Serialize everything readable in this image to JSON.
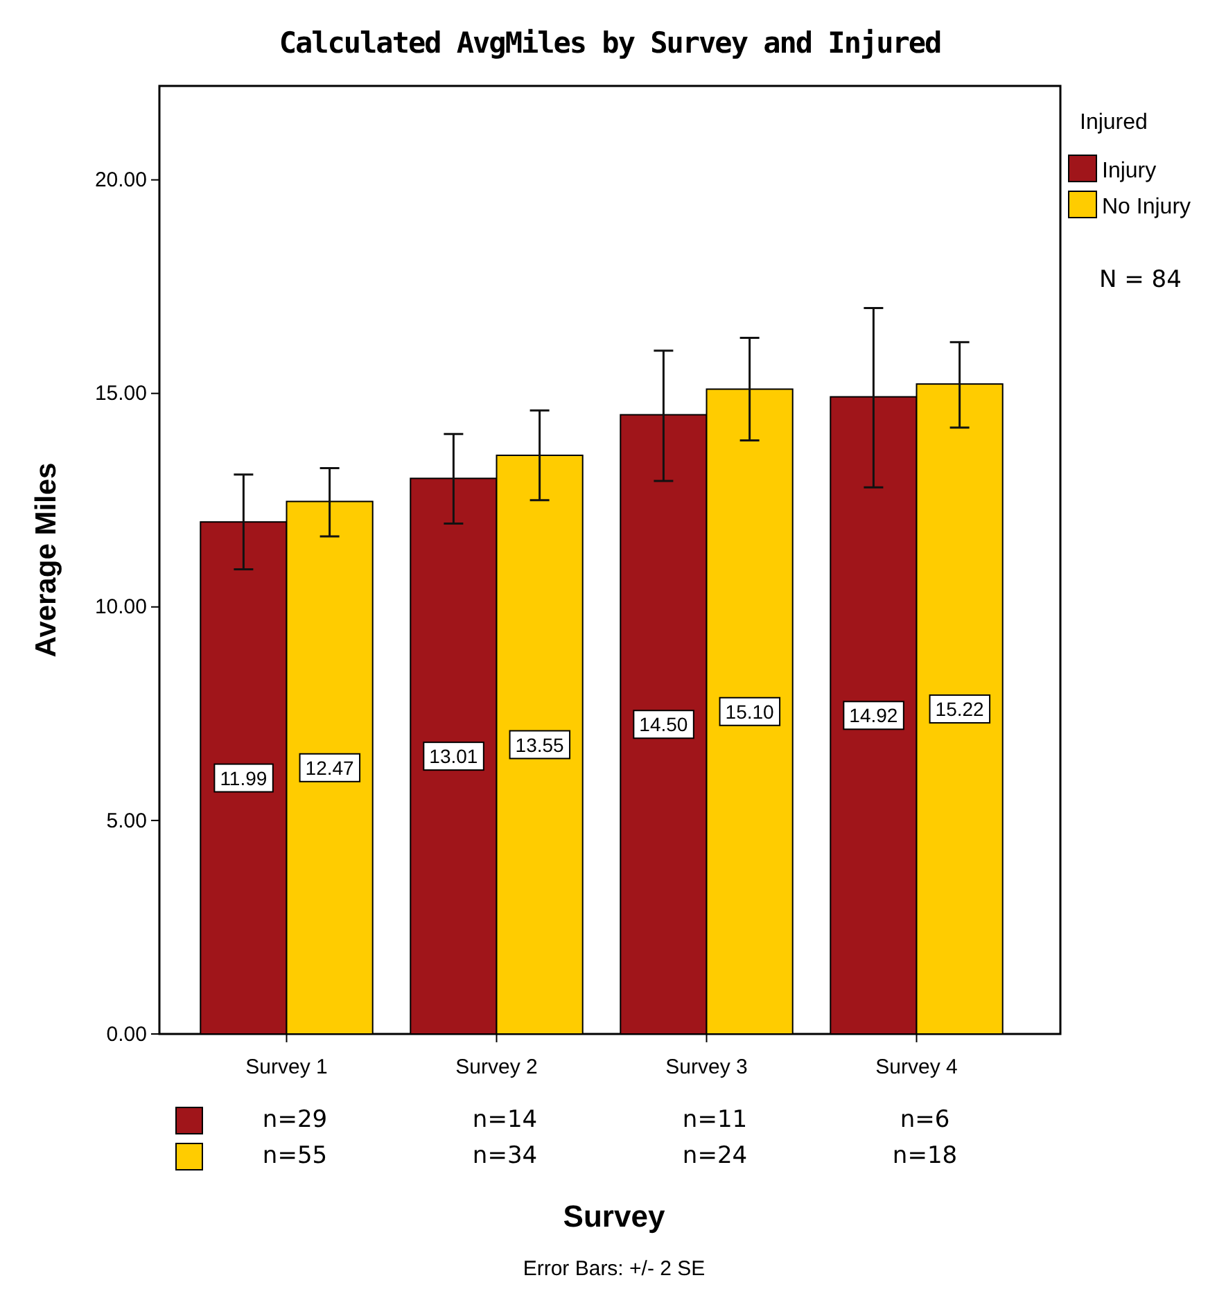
{
  "chart_data": {
    "type": "bar",
    "title": "Calculated AvgMiles by Survey and Injured",
    "xlabel": "Survey",
    "ylabel": "Average Miles",
    "legend_title": "Injured",
    "categories": [
      "Survey 1",
      "Survey 2",
      "Survey 3",
      "Survey 4"
    ],
    "series": [
      {
        "name": "Injury",
        "color": "#a0151a",
        "values": [
          11.99,
          13.01,
          14.5,
          14.92
        ],
        "value_labels": [
          "11.99",
          "13.01",
          "14.50",
          "14.92"
        ],
        "errors": [
          [
            10.88,
            13.1
          ],
          [
            11.95,
            14.05
          ],
          [
            12.95,
            16.0
          ],
          [
            12.8,
            17.0
          ]
        ]
      },
      {
        "name": "No Injury",
        "color": "#ffcc00",
        "values": [
          12.47,
          13.55,
          15.1,
          15.22
        ],
        "value_labels": [
          "12.47",
          "13.55",
          "15.10",
          "15.22"
        ],
        "errors": [
          [
            11.65,
            13.25
          ],
          [
            12.5,
            14.6
          ],
          [
            13.9,
            16.3
          ],
          [
            14.2,
            16.2
          ]
        ]
      }
    ],
    "ylim": [
      0,
      22.2
    ],
    "yticks": [
      {
        "value": 0,
        "label": "0.00"
      },
      {
        "value": 5,
        "label": "5.00"
      },
      {
        "value": 10,
        "label": "10.00"
      },
      {
        "value": 15,
        "label": "15.00"
      },
      {
        "value": 20,
        "label": "20.00"
      }
    ],
    "grid": false,
    "legend": "right",
    "annotations": [
      "n=29",
      "n=14",
      "n=11",
      "n=6",
      "n=55",
      "n=34",
      "n=24",
      "n=18",
      "N = 84",
      "Error Bars: +/- 2 SE"
    ]
  }
}
